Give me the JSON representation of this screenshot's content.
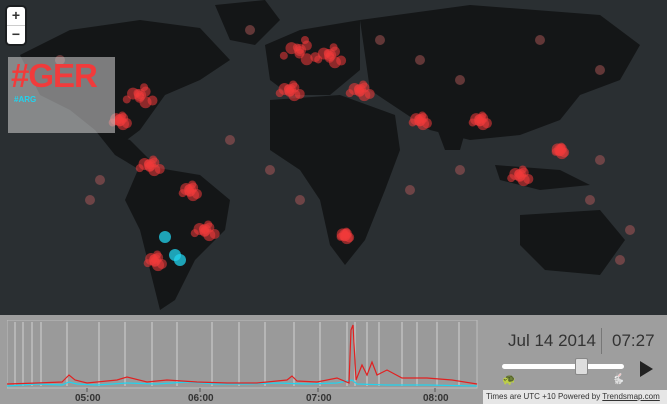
{
  "map": {
    "zoom_in": "+",
    "zoom_out": "−",
    "legend_primary": "#GER",
    "legend_secondary": "#ARG",
    "colors": {
      "primary": "#f13b3b",
      "secondary": "#22d3ee",
      "ocean": "#2a2f32",
      "land": "#141617"
    }
  },
  "timeline": {
    "date": "Jul 14 2014",
    "time": "07:27",
    "ticks": [
      "05:00",
      "06:00",
      "07:00",
      "08:00"
    ],
    "playback_position": 0.62,
    "slow_icon": "turtle-icon",
    "fast_icon": "rabbit-icon",
    "play_icon": "play-icon"
  },
  "footer": {
    "timezone_note": "Times are UTC +10",
    "powered_by": "Powered by",
    "brand_link": "Trendsmap.com"
  }
}
